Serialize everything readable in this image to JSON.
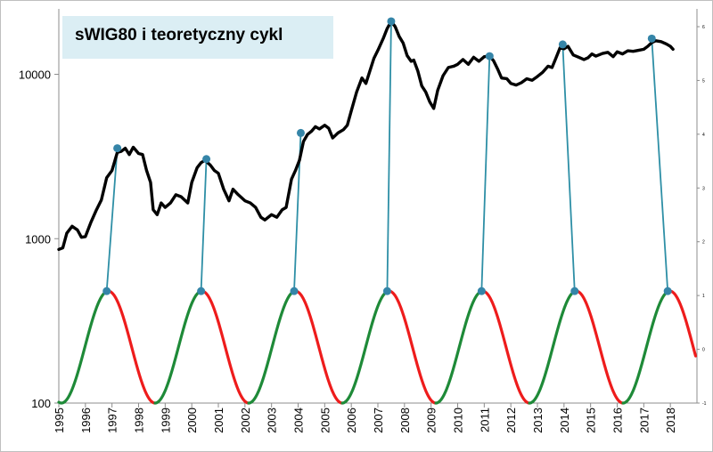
{
  "chart_data": {
    "type": "line",
    "title": "sWIG80 i teoretyczny cykl",
    "y_scale": "log",
    "ylim": [
      100,
      25000
    ],
    "yticks": [
      {
        "value": 100,
        "label": "100"
      },
      {
        "value": 1000,
        "label": "1000"
      },
      {
        "value": 10000,
        "label": "10000"
      }
    ],
    "xlim": [
      1995,
      2019
    ],
    "xticks": [
      "1995",
      "1996",
      "1997",
      "1998",
      "1999",
      "2000",
      "2001",
      "2002",
      "2003",
      "2004",
      "2005",
      "2006",
      "2007",
      "2008",
      "2009",
      "2010",
      "2011",
      "2012",
      "2013",
      "2014",
      "2015",
      "2016",
      "2017",
      "2018"
    ],
    "secondary_yticks": [
      "-1",
      "0",
      "1",
      "2",
      "3",
      "4",
      "5",
      "6"
    ],
    "colors": {
      "index": "#000000",
      "cycle_rise": "#1e8a38",
      "cycle_fall": "#ee1c1c",
      "connector": "#2e8fa6",
      "marker": "#3585a8",
      "title_bg": "#dbeef4"
    },
    "series": [
      {
        "name": "sWIG80",
        "points": [
          [
            1995.0,
            860
          ],
          [
            1995.15,
            880
          ],
          [
            1995.3,
            1080
          ],
          [
            1995.5,
            1190
          ],
          [
            1995.7,
            1130
          ],
          [
            1995.85,
            1020
          ],
          [
            1996.0,
            1030
          ],
          [
            1996.2,
            1250
          ],
          [
            1996.4,
            1480
          ],
          [
            1996.6,
            1720
          ],
          [
            1996.8,
            2350
          ],
          [
            1997.0,
            2600
          ],
          [
            1997.2,
            3350
          ],
          [
            1997.35,
            3400
          ],
          [
            1997.5,
            3550
          ],
          [
            1997.65,
            3250
          ],
          [
            1997.8,
            3600
          ],
          [
            1998.0,
            3300
          ],
          [
            1998.15,
            3250
          ],
          [
            1998.3,
            2600
          ],
          [
            1998.45,
            2200
          ],
          [
            1998.55,
            1500
          ],
          [
            1998.7,
            1400
          ],
          [
            1998.85,
            1650
          ],
          [
            1999.0,
            1550
          ],
          [
            1999.2,
            1650
          ],
          [
            1999.4,
            1850
          ],
          [
            1999.6,
            1800
          ],
          [
            1999.85,
            1650
          ],
          [
            2000.0,
            2200
          ],
          [
            2000.2,
            2700
          ],
          [
            2000.35,
            2900
          ],
          [
            2000.5,
            3000
          ],
          [
            2000.7,
            2800
          ],
          [
            2000.85,
            2600
          ],
          [
            2001.0,
            2500
          ],
          [
            2001.2,
            2000
          ],
          [
            2001.4,
            1700
          ],
          [
            2001.55,
            2000
          ],
          [
            2001.75,
            1850
          ],
          [
            2002.0,
            1700
          ],
          [
            2002.2,
            1650
          ],
          [
            2002.4,
            1550
          ],
          [
            2002.6,
            1350
          ],
          [
            2002.75,
            1300
          ],
          [
            2003.0,
            1400
          ],
          [
            2003.2,
            1350
          ],
          [
            2003.4,
            1500
          ],
          [
            2003.55,
            1550
          ],
          [
            2003.75,
            2300
          ],
          [
            2003.9,
            2600
          ],
          [
            2004.05,
            3000
          ],
          [
            2004.2,
            3900
          ],
          [
            2004.35,
            4300
          ],
          [
            2004.5,
            4500
          ],
          [
            2004.65,
            4800
          ],
          [
            2004.8,
            4650
          ],
          [
            2005.0,
            4900
          ],
          [
            2005.15,
            4700
          ],
          [
            2005.3,
            4100
          ],
          [
            2005.5,
            4400
          ],
          [
            2005.7,
            4600
          ],
          [
            2005.85,
            4900
          ],
          [
            2006.0,
            6000
          ],
          [
            2006.2,
            7800
          ],
          [
            2006.4,
            9500
          ],
          [
            2006.55,
            8800
          ],
          [
            2006.7,
            10500
          ],
          [
            2006.85,
            12500
          ],
          [
            2007.0,
            14000
          ],
          [
            2007.2,
            16500
          ],
          [
            2007.35,
            19000
          ],
          [
            2007.5,
            21000
          ],
          [
            2007.65,
            19500
          ],
          [
            2007.8,
            17000
          ],
          [
            2007.95,
            15500
          ],
          [
            2008.1,
            13000
          ],
          [
            2008.25,
            12000
          ],
          [
            2008.35,
            12200
          ],
          [
            2008.5,
            10500
          ],
          [
            2008.65,
            8500
          ],
          [
            2008.8,
            7800
          ],
          [
            2008.95,
            6800
          ],
          [
            2009.1,
            6200
          ],
          [
            2009.25,
            8000
          ],
          [
            2009.45,
            9800
          ],
          [
            2009.65,
            11000
          ],
          [
            2009.85,
            11200
          ],
          [
            2010.0,
            11500
          ],
          [
            2010.2,
            12300
          ],
          [
            2010.4,
            11500
          ],
          [
            2010.6,
            12700
          ],
          [
            2010.8,
            12000
          ],
          [
            2011.0,
            12800
          ],
          [
            2011.2,
            12900
          ],
          [
            2011.35,
            12100
          ],
          [
            2011.5,
            10800
          ],
          [
            2011.65,
            9500
          ],
          [
            2011.85,
            9400
          ],
          [
            2012.0,
            8800
          ],
          [
            2012.2,
            8600
          ],
          [
            2012.4,
            8900
          ],
          [
            2012.6,
            9400
          ],
          [
            2012.8,
            9200
          ],
          [
            2013.0,
            9700
          ],
          [
            2013.2,
            10300
          ],
          [
            2013.4,
            11200
          ],
          [
            2013.55,
            11000
          ],
          [
            2013.7,
            12600
          ],
          [
            2013.85,
            14500
          ],
          [
            2014.0,
            14300
          ],
          [
            2014.15,
            14800
          ],
          [
            2014.35,
            13100
          ],
          [
            2014.55,
            12700
          ],
          [
            2014.75,
            12300
          ],
          [
            2014.9,
            12600
          ],
          [
            2015.05,
            13300
          ],
          [
            2015.2,
            12900
          ],
          [
            2015.45,
            13400
          ],
          [
            2015.65,
            13600
          ],
          [
            2015.85,
            12800
          ],
          [
            2016.0,
            13700
          ],
          [
            2016.2,
            13300
          ],
          [
            2016.4,
            13900
          ],
          [
            2016.6,
            13800
          ],
          [
            2016.8,
            14000
          ],
          [
            2017.0,
            14200
          ],
          [
            2017.15,
            14800
          ],
          [
            2017.3,
            15600
          ],
          [
            2017.45,
            16000
          ],
          [
            2017.65,
            15800
          ],
          [
            2017.85,
            15300
          ],
          [
            2018.0,
            14800
          ],
          [
            2018.1,
            14200
          ]
        ]
      },
      {
        "name": "teoretyczny cykl",
        "trough_year": 1995.1,
        "period_years": 3.52,
        "min_value": 100,
        "max_value": 480,
        "end_year": 2018.95
      }
    ],
    "cycle_peaks": [
      1996.8,
      2000.35,
      2003.85,
      2007.35,
      2010.9,
      2014.4,
      2017.9
    ],
    "index_peaks": [
      {
        "year": 1997.2,
        "value": 3550
      },
      {
        "year": 2000.55,
        "value": 3050
      },
      {
        "year": 2004.1,
        "value": 4400
      },
      {
        "year": 2007.5,
        "value": 21000
      },
      {
        "year": 2011.2,
        "value": 12900
      },
      {
        "year": 2013.95,
        "value": 15200
      },
      {
        "year": 2017.3,
        "value": 16500
      }
    ]
  }
}
